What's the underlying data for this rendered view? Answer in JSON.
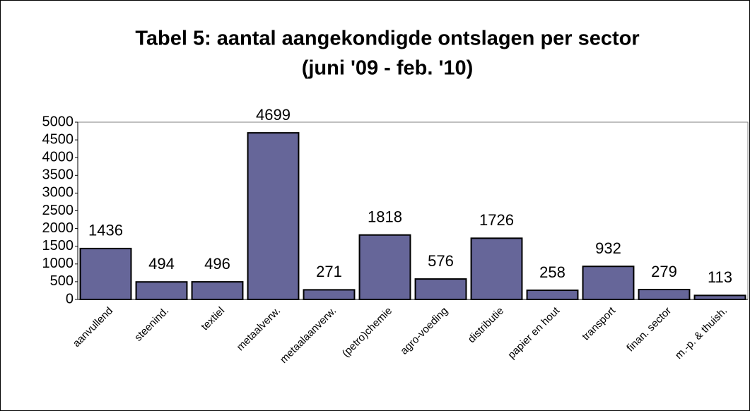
{
  "chart_data": {
    "type": "bar",
    "title": [
      "Tabel 5: aantal aangekondigde ontslagen per sector",
      "(juni '09 - feb. '10)"
    ],
    "categories": [
      "aanvullend",
      "steenind.",
      "textiel",
      "metaalverw.",
      "metaalaanverw.",
      "(petro)chemie",
      "agro-voeding",
      "distributie",
      "papier en hout",
      "transport",
      "finan. sector",
      "m.-p. & thuish."
    ],
    "values": [
      1436,
      494,
      496,
      4699,
      271,
      1818,
      576,
      1726,
      258,
      932,
      279,
      113
    ],
    "color": "#666699",
    "ylim": [
      0,
      5000
    ],
    "yticks": [
      0,
      500,
      1000,
      1500,
      2000,
      2500,
      3000,
      3500,
      4000,
      4500,
      5000
    ],
    "grid": false
  }
}
